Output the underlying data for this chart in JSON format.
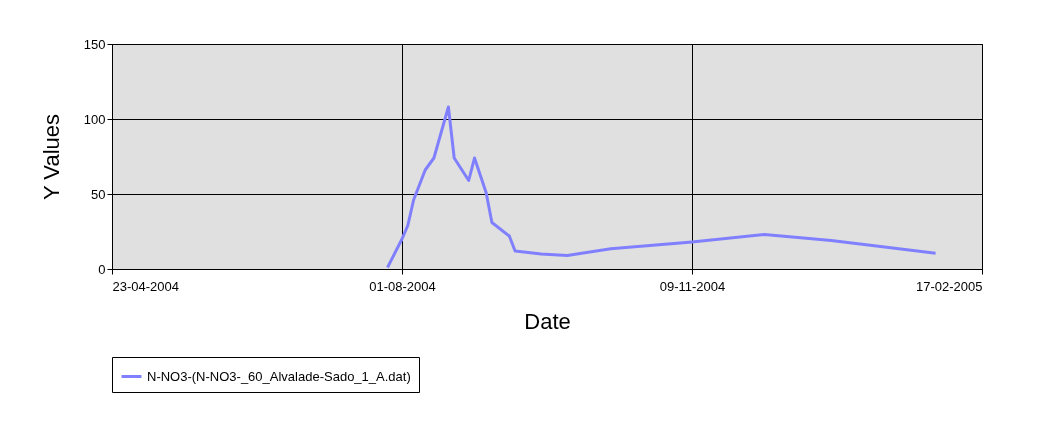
{
  "chart_data": {
    "type": "line",
    "xlabel": "Date",
    "ylabel": "Y Values",
    "x": [
      "2004-07-27",
      "2004-08-01",
      "2004-08-03",
      "2004-08-05",
      "2004-08-09",
      "2004-08-12",
      "2004-08-17",
      "2004-08-19",
      "2004-08-24",
      "2004-08-26",
      "2004-08-30",
      "2004-09-01",
      "2004-09-07",
      "2004-09-09",
      "2004-09-18",
      "2004-09-27",
      "2004-10-12",
      "2004-11-09",
      "2004-12-04",
      "2004-12-27",
      "2005-01-13",
      "2005-02-01"
    ],
    "series": [
      {
        "name": "N-NO3-(N-NO3-_60_Alvalade-Sado_1_A.dat)",
        "color": "#8080ff",
        "values": [
          1,
          20,
          29,
          46,
          66,
          74,
          108,
          74,
          59,
          74,
          51,
          31,
          22,
          12,
          10,
          9,
          13.5,
          18,
          23,
          19,
          15,
          10.5
        ]
      }
    ],
    "xlim": [
      "2004-04-23",
      "2005-02-17"
    ],
    "xticks": [
      {
        "value": "2004-04-23",
        "label": "23-04-2004"
      },
      {
        "value": "2004-08-01",
        "label": "01-08-2004"
      },
      {
        "value": "2004-11-09",
        "label": "09-11-2004"
      },
      {
        "value": "2005-02-17",
        "label": "17-02-2005"
      }
    ],
    "ylim": [
      0,
      150
    ],
    "yticks": [
      0,
      50,
      100,
      150
    ],
    "grid": true,
    "legend": "bottom",
    "marker": "none",
    "line_style": "solid"
  }
}
